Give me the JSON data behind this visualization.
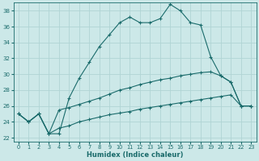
{
  "xlabel": "Humidex (Indice chaleur)",
  "ylabel": "",
  "background_color": "#cce8e8",
  "grid_color": "#b0d4d4",
  "line_color": "#1a6b6b",
  "xlim": [
    -0.5,
    23.5
  ],
  "ylim": [
    21.5,
    39.0
  ],
  "yticks": [
    22,
    24,
    26,
    28,
    30,
    32,
    34,
    36,
    38
  ],
  "xticks": [
    0,
    1,
    2,
    3,
    4,
    5,
    6,
    7,
    8,
    9,
    10,
    11,
    12,
    13,
    14,
    15,
    16,
    17,
    18,
    19,
    20,
    21,
    22,
    23
  ],
  "series1_x": [
    0,
    1,
    2,
    3,
    4,
    5,
    6,
    7,
    8,
    9,
    10,
    11,
    12,
    13,
    14,
    15,
    16,
    17,
    18,
    19,
    20,
    21,
    22,
    23
  ],
  "series1_y": [
    25.0,
    24.0,
    25.0,
    22.5,
    22.5,
    27.0,
    29.5,
    31.5,
    33.5,
    35.0,
    36.5,
    37.2,
    36.5,
    36.5,
    37.0,
    38.8,
    38.0,
    36.5,
    36.2,
    32.2,
    29.8,
    29.0,
    26.0,
    26.0
  ],
  "series2_x": [
    0,
    1,
    2,
    3,
    4,
    5,
    6,
    7,
    8,
    9,
    10,
    11,
    12,
    13,
    14,
    15,
    16,
    17,
    18,
    19,
    20,
    21,
    22,
    23
  ],
  "series2_y": [
    25.0,
    24.0,
    25.0,
    22.5,
    25.5,
    25.8,
    26.2,
    26.6,
    27.0,
    27.5,
    28.0,
    28.3,
    28.7,
    29.0,
    29.3,
    29.5,
    29.8,
    30.0,
    30.2,
    30.3,
    29.8,
    29.0,
    26.0,
    26.0
  ],
  "series3_x": [
    0,
    1,
    2,
    3,
    4,
    5,
    6,
    7,
    8,
    9,
    10,
    11,
    12,
    13,
    14,
    15,
    16,
    17,
    18,
    19,
    20,
    21,
    22,
    23
  ],
  "series3_y": [
    25.0,
    24.0,
    25.0,
    22.5,
    23.2,
    23.5,
    24.0,
    24.3,
    24.6,
    24.9,
    25.1,
    25.3,
    25.6,
    25.8,
    26.0,
    26.2,
    26.4,
    26.6,
    26.8,
    27.0,
    27.2,
    27.4,
    26.0,
    26.0
  ]
}
